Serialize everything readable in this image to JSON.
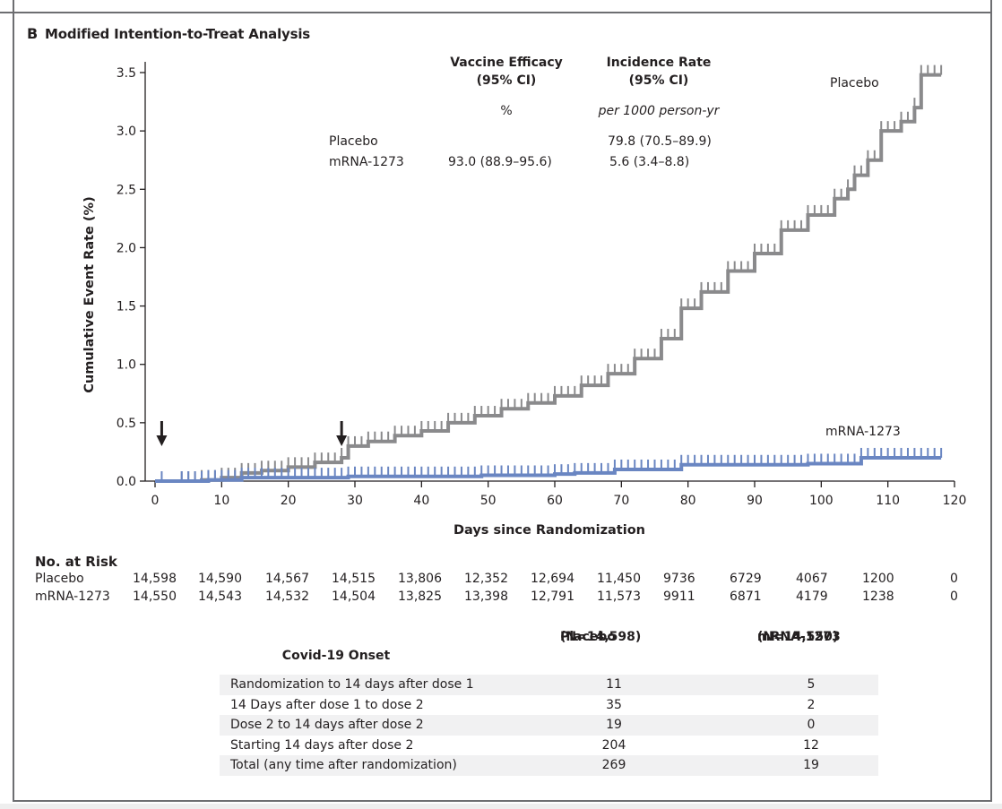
{
  "panel": {
    "letter": "B",
    "title": "Modified Intention-to-Treat Analysis"
  },
  "summary": {
    "col1_header_line1": "Vaccine Efficacy",
    "col1_header_line2": "(95% CI)",
    "col1_unit": "%",
    "col2_header_line1": "Incidence Rate",
    "col2_header_line2": "(95% CI)",
    "col2_unit": "per 1000 person-yr",
    "rows": [
      {
        "group": "Placebo",
        "efficacy": "",
        "incidence": "79.8 (70.5–89.9)"
      },
      {
        "group": "mRNA-1273",
        "efficacy": "93.0 (88.9–95.6)",
        "incidence": "5.6 (3.4–8.8)"
      }
    ]
  },
  "chart_data": {
    "type": "line",
    "subtype": "kaplan-meier-cumulative-incidence",
    "title": "Modified Intention-to-Treat Analysis",
    "xlabel": "Days since Randomization",
    "ylabel": "Cumulative Event Rate (%)",
    "xlim": [
      0,
      120
    ],
    "ylim": [
      0,
      3.5
    ],
    "xticks": [
      0,
      10,
      20,
      30,
      40,
      50,
      60,
      70,
      80,
      90,
      100,
      110,
      120
    ],
    "yticks": [
      "0.0",
      "0.5",
      "1.0",
      "1.5",
      "2.0",
      "2.5",
      "3.0",
      "3.5"
    ],
    "grid": false,
    "annotations": [
      {
        "type": "arrow",
        "x": 1,
        "meaning": "dose 1"
      },
      {
        "type": "arrow",
        "x": 28,
        "meaning": "dose 2"
      }
    ],
    "series": [
      {
        "name": "Placebo",
        "color": "#8a8a8c",
        "label": "Placebo",
        "x": [
          0,
          7,
          10,
          13,
          16,
          20,
          24,
          28,
          29,
          32,
          36,
          40,
          44,
          48,
          52,
          56,
          60,
          64,
          68,
          72,
          76,
          79,
          82,
          86,
          90,
          94,
          98,
          102,
          104,
          105,
          107,
          109,
          112,
          114,
          115,
          118
        ],
        "y": [
          0.0,
          0.01,
          0.03,
          0.07,
          0.09,
          0.12,
          0.16,
          0.2,
          0.3,
          0.34,
          0.39,
          0.43,
          0.5,
          0.56,
          0.62,
          0.67,
          0.73,
          0.82,
          0.92,
          1.05,
          1.22,
          1.48,
          1.62,
          1.8,
          1.95,
          2.15,
          2.28,
          2.42,
          2.5,
          2.62,
          2.75,
          3.0,
          3.08,
          3.2,
          3.48,
          3.48
        ]
      },
      {
        "name": "mRNA-1273",
        "color": "#6a86c2",
        "label": "mRNA-1273",
        "x": [
          0,
          8,
          13,
          29,
          49,
          60,
          63,
          69,
          79,
          98,
          106,
          118
        ],
        "y": [
          0.0,
          0.01,
          0.03,
          0.04,
          0.05,
          0.06,
          0.07,
          0.1,
          0.14,
          0.15,
          0.2,
          0.2
        ]
      }
    ]
  },
  "risk_table": {
    "title": "No. at Risk",
    "rows": [
      {
        "group": "Placebo",
        "values": [
          "14,598",
          "14,590",
          "14,567",
          "14,515",
          "13,806",
          "12,352",
          "12,694",
          "11,450",
          "9736",
          "6729",
          "4067",
          "1200",
          "0"
        ]
      },
      {
        "group": "mRNA-1273",
        "values": [
          "14,550",
          "14,543",
          "14,532",
          "14,504",
          "13,825",
          "13,398",
          "12,791",
          "11,573",
          "9911",
          "6871",
          "4179",
          "1238",
          "0"
        ]
      }
    ]
  },
  "onset_table": {
    "header": {
      "label": "Covid-19 Onset",
      "placebo_line1": "Placebo",
      "placebo_line2": "(N=14,598)",
      "mrna_line1": "mRNA-1273",
      "mrna_line2": "(N=14,550)"
    },
    "rows": [
      {
        "label": "Randomization to 14 days after dose 1",
        "placebo": "11",
        "mrna": "5"
      },
      {
        "label": "14 Days after dose 1 to dose 2",
        "placebo": "35",
        "mrna": "2"
      },
      {
        "label": "Dose 2 to 14 days after dose 2",
        "placebo": "19",
        "mrna": "0"
      },
      {
        "label": "Starting 14 days after dose 2",
        "placebo": "204",
        "mrna": "12"
      },
      {
        "label": "Total (any time after randomization)",
        "placebo": "269",
        "mrna": "19"
      }
    ]
  }
}
